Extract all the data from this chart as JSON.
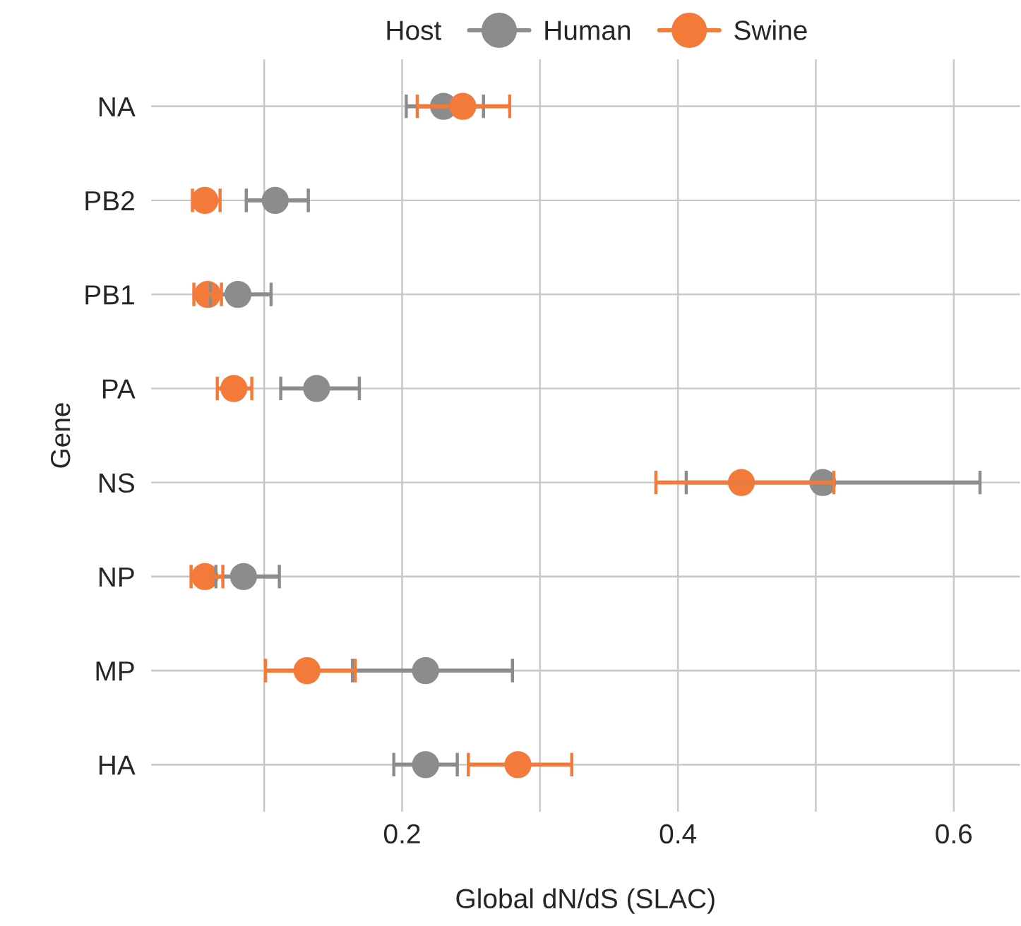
{
  "chart_data": {
    "type": "scatter",
    "orientation": "horizontal",
    "xlabel": "Global dN/dS (SLAC)",
    "ylabel": "Gene",
    "legend_title": "Host",
    "legend": "top",
    "categories": [
      "NA",
      "PB2",
      "PB1",
      "PA",
      "NS",
      "NP",
      "MP",
      "HA"
    ],
    "series": [
      {
        "name": "Human",
        "color": "#8c8c8c",
        "values": [
          0.23,
          0.108,
          0.081,
          0.138,
          0.505,
          0.085,
          0.217,
          0.217
        ],
        "errors": [
          [
            0.203,
            0.259
          ],
          [
            0.087,
            0.132
          ],
          [
            0.061,
            0.105
          ],
          [
            0.112,
            0.169
          ],
          [
            0.406,
            0.619
          ],
          [
            0.065,
            0.111
          ],
          [
            0.164,
            0.28
          ],
          [
            0.194,
            0.24
          ]
        ]
      },
      {
        "name": "Swine",
        "color": "#f47a3a",
        "values": [
          0.244,
          0.057,
          0.059,
          0.078,
          0.446,
          0.057,
          0.131,
          0.284
        ],
        "errors": [
          [
            0.211,
            0.278
          ],
          [
            0.048,
            0.068
          ],
          [
            0.049,
            0.069
          ],
          [
            0.066,
            0.091
          ],
          [
            0.384,
            0.513
          ],
          [
            0.047,
            0.07
          ],
          [
            0.101,
            0.166
          ],
          [
            0.248,
            0.323
          ]
        ]
      }
    ],
    "xlim": [
      0.018,
      0.648
    ],
    "xticks": [
      {
        "value": 0.1,
        "label": null
      },
      0.2,
      {
        "value": 0.3,
        "label": null
      },
      0.4,
      {
        "value": 0.5,
        "label": null
      },
      0.6
    ],
    "grid": true,
    "marker": "circle"
  }
}
